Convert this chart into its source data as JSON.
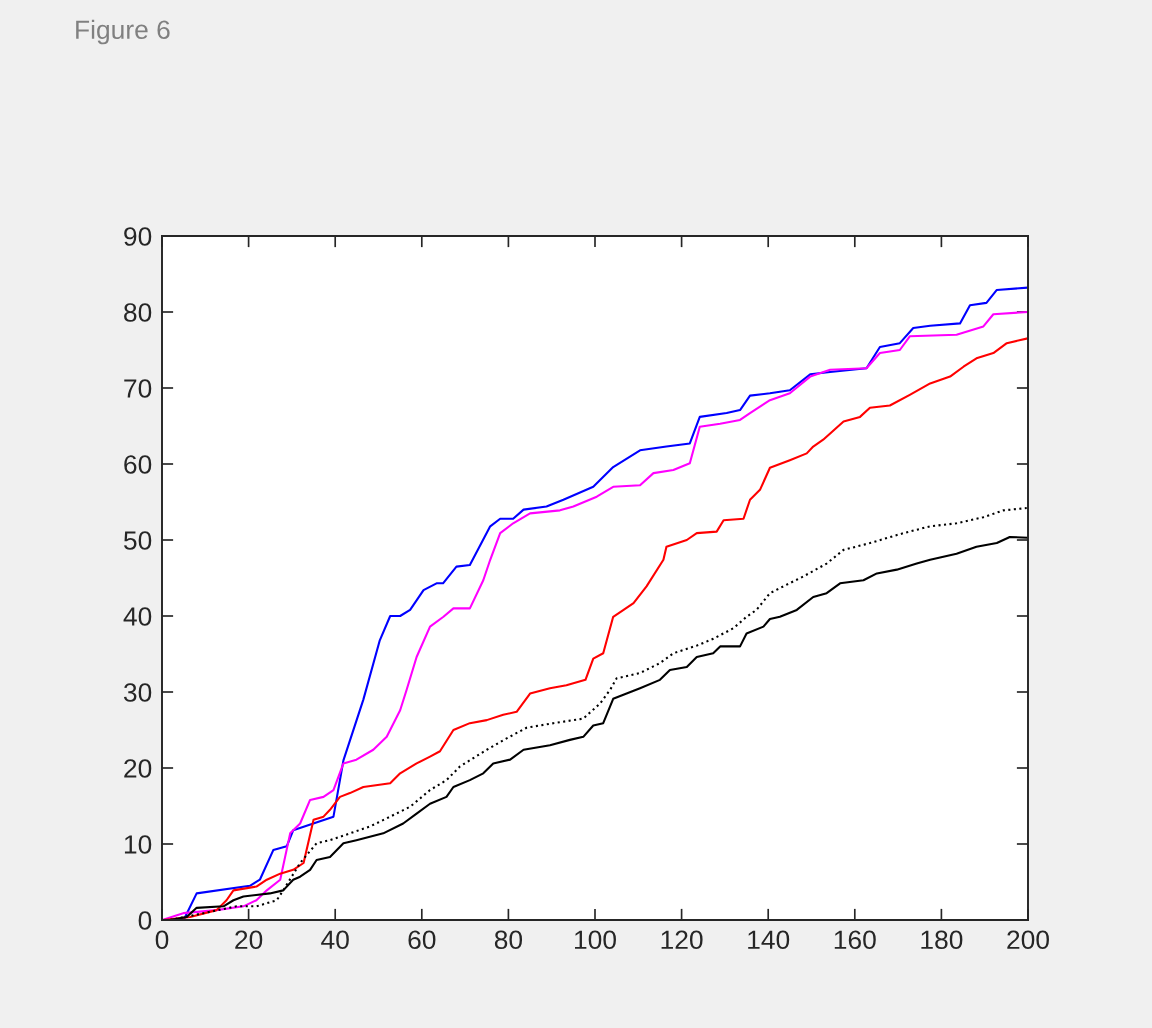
{
  "chart_data": {
    "type": "line",
    "title": "Figure 6",
    "xlim": [
      0,
      200
    ],
    "ylim": [
      0,
      90
    ],
    "xticks": [
      0,
      20,
      40,
      60,
      80,
      100,
      120,
      140,
      160,
      180,
      200
    ],
    "yticks": [
      0,
      10,
      20,
      30,
      40,
      50,
      60,
      70,
      80,
      90
    ],
    "grid": false,
    "marker": "none",
    "series": [
      {
        "color": "#0000ff",
        "line_style": "solid",
        "x": [
          0,
          5,
          8,
          20.3,
          22.6,
          25.7,
          28.8,
          30.3,
          39.6,
          41.9,
          46.5,
          50.3,
          52.7,
          55,
          57.3,
          60.4,
          63.4,
          64.9,
          68,
          71.1,
          75.8,
          78.1,
          81.1,
          83.5,
          88.8,
          92.7,
          99.6,
          104.2,
          110.4,
          116.5,
          121.9,
          124.2,
          130.4,
          133.5,
          135.8,
          140.4,
          145,
          149.7,
          154.3,
          162.7,
          165.8,
          170.4,
          173.5,
          177.4,
          184.3,
          186.6,
          190.4,
          192.8,
          199.7
        ],
        "values": [
          0,
          0,
          3.5,
          4.5,
          5.3,
          9.2,
          9.7,
          11.8,
          13.6,
          21,
          29,
          36.8,
          40,
          40,
          40.8,
          43.4,
          44.3,
          44.3,
          46.5,
          46.7,
          51.8,
          52.8,
          52.8,
          54,
          54.4,
          55.3,
          57,
          59.6,
          61.8,
          62.3,
          62.7,
          66.2,
          66.7,
          67.1,
          69,
          69.3,
          69.7,
          71.8,
          72.1,
          72.6,
          75.4,
          75.9,
          77.9,
          78.2,
          78.5,
          80.9,
          81.2,
          82.9,
          83.2
        ]
      },
      {
        "color": "#ff00ff",
        "line_style": "solid",
        "x": [
          0,
          4.9,
          12.6,
          18.8,
          21.8,
          24.2,
          27.3,
          29.6,
          31.9,
          34.2,
          37.3,
          39.6,
          41.9,
          44.9,
          48.8,
          51.9,
          55,
          56.5,
          58.8,
          61.9,
          65,
          67.3,
          71.1,
          74.2,
          75.8,
          78.1,
          81.1,
          85,
          91.9,
          95,
          100.4,
          104.2,
          110.4,
          113.5,
          118.1,
          121.9,
          124.2,
          128.9,
          133.5,
          135.8,
          140.4,
          145,
          149.7,
          154.3,
          162.7,
          165.8,
          170.4,
          172.7,
          183.5,
          189.7,
          192,
          199.7
        ],
        "values": [
          0,
          0.9,
          1.3,
          1.8,
          2.6,
          3.9,
          5.3,
          11.4,
          12.7,
          15.8,
          16.2,
          17.1,
          20.6,
          21.1,
          22.4,
          24.1,
          27.6,
          30.3,
          34.6,
          38.6,
          39.9,
          41,
          41,
          44.7,
          47.4,
          50.9,
          52.2,
          53.5,
          53.9,
          54.4,
          55.7,
          57,
          57.2,
          58.8,
          59.2,
          60.1,
          64.9,
          65.3,
          65.8,
          66.7,
          68.4,
          69.3,
          71.5,
          72.4,
          72.6,
          74.6,
          75,
          76.8,
          77,
          78.1,
          79.7,
          80
        ]
      },
      {
        "color": "#ff0000",
        "line_style": "solid",
        "x": [
          0.3,
          6.5,
          12.6,
          14.9,
          16.5,
          21.8,
          24.2,
          27.3,
          30.3,
          32.7,
          35,
          37.3,
          38.8,
          41.1,
          43.4,
          46.5,
          52.7,
          55,
          58.8,
          61.9,
          64.2,
          67.3,
          71.1,
          75,
          78.8,
          81.9,
          85,
          89.6,
          93.4,
          97.8,
          99.6,
          101.9,
          104.2,
          106.6,
          108.9,
          111.9,
          115.8,
          116.5,
          121.2,
          123.5,
          128.1,
          129.7,
          134.3,
          135.8,
          138.1,
          140.4,
          145,
          148.9,
          150.4,
          152.7,
          157.4,
          161.2,
          163.5,
          168.1,
          172.7,
          177.4,
          182,
          185.1,
          188.1,
          192,
          195.1,
          199.7
        ],
        "values": [
          0,
          0.4,
          1.3,
          2.6,
          3.9,
          4.4,
          5.3,
          6.1,
          6.6,
          7.5,
          13.2,
          13.6,
          14.5,
          16.2,
          16.7,
          17.5,
          18,
          19.3,
          20.6,
          21.5,
          22.2,
          25,
          25.9,
          26.3,
          27,
          27.4,
          29.8,
          30.5,
          30.9,
          31.6,
          34.4,
          35.1,
          39.9,
          40.8,
          41.7,
          43.9,
          47.4,
          49.1,
          50,
          50.9,
          51.1,
          52.6,
          52.8,
          55.3,
          56.6,
          59.5,
          60.5,
          61.4,
          62.3,
          63.2,
          65.6,
          66.2,
          67.4,
          67.7,
          69.1,
          70.6,
          71.5,
          72.8,
          73.9,
          74.6,
          75.9,
          76.5
        ]
      },
      {
        "color": "#000000",
        "line_style": "dotted",
        "x": [
          1.8,
          9.6,
          17.2,
          21.8,
          26.5,
          28,
          31.9,
          35.7,
          38.8,
          43.4,
          48,
          52.7,
          57.3,
          61.9,
          65.7,
          68.8,
          75,
          79.6,
          84.2,
          90.4,
          97.3,
          101.2,
          103.5,
          105,
          110.4,
          115,
          118.1,
          123.5,
          127.3,
          132,
          135,
          137.3,
          140.4,
          143.5,
          148.1,
          153.5,
          157.4,
          163.5,
          171.2,
          177.4,
          183.5,
          189.7,
          194.3,
          199.7
        ],
        "values": [
          0,
          0.9,
          1.8,
          1.8,
          2.6,
          3.9,
          7.5,
          10.1,
          10.5,
          11.4,
          12.3,
          13.6,
          14.9,
          17.1,
          18.4,
          20.2,
          22.4,
          23.9,
          25.3,
          25.9,
          26.5,
          28.5,
          30.3,
          31.8,
          32.5,
          33.8,
          35.1,
          36.1,
          37,
          38.4,
          39.9,
          40.8,
          43,
          43.9,
          45.2,
          46.9,
          48.7,
          49.6,
          50.9,
          51.8,
          52.2,
          53,
          53.9,
          54.2
        ]
      },
      {
        "color": "#000000",
        "line_style": "solid",
        "x": [
          1.8,
          5.7,
          8,
          14.2,
          16.5,
          18.8,
          24.9,
          28,
          30.3,
          31.9,
          34.2,
          35.7,
          38.8,
          41.9,
          44.9,
          51.1,
          55.7,
          58.8,
          61.9,
          65.7,
          67.3,
          71.1,
          74.2,
          76.5,
          80.4,
          83.5,
          89.6,
          94.2,
          97.3,
          99.6,
          101.9,
          104.2,
          107.3,
          110.4,
          115,
          117.3,
          121.2,
          123.5,
          127.3,
          128.9,
          133.5,
          135,
          138.9,
          140.4,
          142.7,
          146.6,
          150.4,
          153.5,
          156.6,
          162,
          165.1,
          169.7,
          174.3,
          177.4,
          183.5,
          188.1,
          192.8,
          195.8,
          199.7
        ],
        "values": [
          0,
          0.4,
          1.6,
          1.8,
          2.6,
          3.1,
          3.5,
          3.9,
          5.3,
          5.7,
          6.6,
          7.9,
          8.3,
          10.1,
          10.5,
          11.4,
          12.7,
          14,
          15.3,
          16.2,
          17.5,
          18.4,
          19.3,
          20.6,
          21.1,
          22.4,
          23,
          23.7,
          24.1,
          25.6,
          25.9,
          29.1,
          29.8,
          30.5,
          31.6,
          32.9,
          33.3,
          34.6,
          35.1,
          36,
          36,
          37.7,
          38.6,
          39.6,
          39.9,
          40.8,
          42.5,
          43,
          44.3,
          44.7,
          45.6,
          46.1,
          46.9,
          47.4,
          48.2,
          49.1,
          49.6,
          50.4,
          50.3
        ]
      }
    ]
  }
}
